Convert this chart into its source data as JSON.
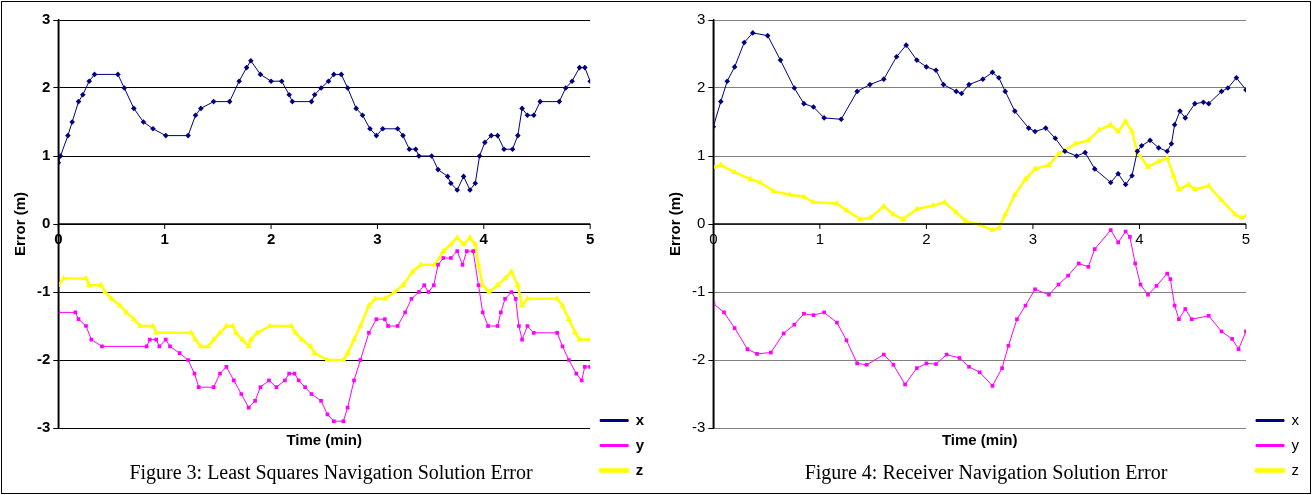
{
  "chart_data": [
    {
      "type": "line",
      "title": "Figure 3: Least Squares Navigation Solution Error",
      "xlabel": "Time (min)",
      "ylabel": "Error (m)",
      "xlim": [
        0,
        5
      ],
      "xticks": [
        0,
        1,
        2,
        3,
        4,
        5
      ],
      "ylim": [
        -3,
        3
      ],
      "yticks": [
        -3,
        -2,
        -1,
        0,
        1,
        2,
        3
      ],
      "grid": "y",
      "legend": "bottom right",
      "series": [
        {
          "name": "x",
          "color": "#000080",
          "marker": "diamond",
          "x": [
            0,
            0.02,
            0.09,
            0.13,
            0.19,
            0.23,
            0.29,
            0.34,
            0.56,
            0.62,
            0.71,
            0.8,
            0.89,
            1.01,
            1.22,
            1.29,
            1.34,
            1.46,
            1.61,
            1.7,
            1.77,
            1.81,
            1.9,
            2.0,
            2.1,
            2.17,
            2.2,
            2.38,
            2.41,
            2.47,
            2.54,
            2.59,
            2.66,
            2.72,
            2.8,
            2.86,
            2.93,
            2.99,
            3.05,
            3.19,
            3.24,
            3.3,
            3.36,
            3.39,
            3.51,
            3.57,
            3.66,
            3.69,
            3.75,
            3.81,
            3.87,
            3.92,
            3.96,
            4.01,
            4.07,
            4.13,
            4.19,
            4.27,
            4.32,
            4.36,
            4.41,
            4.47,
            4.53,
            4.71,
            4.77,
            4.83,
            4.9,
            4.95,
            5.0
          ],
          "values": [
            0.9,
            1.0,
            1.3,
            1.5,
            1.8,
            1.9,
            2.1,
            2.2,
            2.2,
            2.0,
            1.7,
            1.5,
            1.4,
            1.3,
            1.3,
            1.6,
            1.7,
            1.8,
            1.8,
            2.1,
            2.3,
            2.4,
            2.2,
            2.1,
            2.1,
            1.9,
            1.8,
            1.8,
            1.9,
            2.0,
            2.1,
            2.2,
            2.2,
            2.0,
            1.7,
            1.6,
            1.4,
            1.3,
            1.4,
            1.4,
            1.3,
            1.1,
            1.1,
            1.0,
            1.0,
            0.8,
            0.7,
            0.6,
            0.5,
            0.7,
            0.5,
            0.6,
            1.0,
            1.2,
            1.3,
            1.3,
            1.1,
            1.1,
            1.3,
            1.7,
            1.6,
            1.6,
            1.8,
            1.8,
            2.0,
            2.1,
            2.3,
            2.3,
            2.1
          ]
        },
        {
          "name": "y",
          "color": "#ff00ff",
          "marker": "square",
          "x": [
            0,
            0.16,
            0.19,
            0.26,
            0.31,
            0.41,
            0.83,
            0.86,
            0.92,
            0.95,
            1.01,
            1.05,
            1.14,
            1.22,
            1.28,
            1.32,
            1.46,
            1.52,
            1.58,
            1.65,
            1.72,
            1.79,
            1.85,
            1.9,
            1.98,
            2.05,
            2.13,
            2.17,
            2.22,
            2.26,
            2.32,
            2.38,
            2.47,
            2.53,
            2.59,
            2.68,
            2.72,
            2.78,
            2.84,
            2.92,
            2.99,
            3.07,
            3.1,
            3.19,
            3.26,
            3.32,
            3.39,
            3.44,
            3.48,
            3.53,
            3.57,
            3.62,
            3.69,
            3.75,
            3.8,
            3.84,
            3.9,
            3.95,
            3.99,
            4.04,
            4.13,
            4.16,
            4.2,
            4.26,
            4.3,
            4.33,
            4.36,
            4.41,
            4.47,
            4.69,
            4.74,
            4.8,
            4.87,
            4.92,
            4.95,
            5.0
          ],
          "values": [
            -1.3,
            -1.3,
            -1.4,
            -1.5,
            -1.7,
            -1.8,
            -1.8,
            -1.7,
            -1.7,
            -1.8,
            -1.7,
            -1.8,
            -1.9,
            -2.0,
            -2.2,
            -2.4,
            -2.4,
            -2.2,
            -2.1,
            -2.3,
            -2.5,
            -2.7,
            -2.6,
            -2.4,
            -2.3,
            -2.4,
            -2.3,
            -2.2,
            -2.2,
            -2.3,
            -2.4,
            -2.5,
            -2.6,
            -2.8,
            -2.9,
            -2.9,
            -2.7,
            -2.3,
            -2.0,
            -1.6,
            -1.4,
            -1.4,
            -1.5,
            -1.5,
            -1.3,
            -1.1,
            -1.0,
            -0.9,
            -1.0,
            -0.9,
            -0.6,
            -0.5,
            -0.5,
            -0.4,
            -0.6,
            -0.4,
            -0.4,
            -0.9,
            -1.3,
            -1.5,
            -1.5,
            -1.3,
            -1.1,
            -1.0,
            -1.1,
            -1.5,
            -1.7,
            -1.5,
            -1.6,
            -1.6,
            -1.8,
            -2.0,
            -2.2,
            -2.3,
            -2.1,
            -2.1
          ]
        },
        {
          "name": "z",
          "color": "#ffff00",
          "marker": "triangle",
          "x": [
            0,
            0.05,
            0.26,
            0.29,
            0.4,
            0.44,
            0.5,
            0.58,
            0.64,
            0.71,
            0.77,
            0.89,
            0.92,
            1.25,
            1.29,
            1.34,
            1.41,
            1.46,
            1.52,
            1.58,
            1.64,
            1.67,
            1.73,
            1.79,
            1.81,
            1.87,
            1.99,
            2.19,
            2.23,
            2.29,
            2.37,
            2.41,
            2.53,
            2.68,
            2.72,
            2.78,
            2.84,
            2.92,
            2.98,
            3.07,
            3.16,
            3.24,
            3.33,
            3.41,
            3.54,
            3.62,
            3.69,
            3.75,
            3.81,
            3.87,
            3.92,
            3.95,
            3.99,
            4.05,
            4.13,
            4.2,
            4.26,
            4.32,
            4.36,
            4.41,
            4.69,
            4.74,
            4.8,
            4.86,
            4.9,
            5.0
          ],
          "values": [
            -0.9,
            -0.8,
            -0.8,
            -0.9,
            -0.9,
            -1.0,
            -1.1,
            -1.2,
            -1.3,
            -1.4,
            -1.5,
            -1.5,
            -1.6,
            -1.6,
            -1.7,
            -1.8,
            -1.8,
            -1.7,
            -1.6,
            -1.5,
            -1.5,
            -1.6,
            -1.7,
            -1.8,
            -1.7,
            -1.6,
            -1.5,
            -1.5,
            -1.6,
            -1.7,
            -1.8,
            -1.9,
            -2.0,
            -2.0,
            -1.9,
            -1.7,
            -1.5,
            -1.2,
            -1.1,
            -1.1,
            -1.0,
            -0.9,
            -0.7,
            -0.6,
            -0.6,
            -0.4,
            -0.3,
            -0.2,
            -0.3,
            -0.2,
            -0.3,
            -0.6,
            -0.9,
            -1.0,
            -0.9,
            -0.8,
            -0.7,
            -0.9,
            -1.2,
            -1.1,
            -1.1,
            -1.2,
            -1.4,
            -1.6,
            -1.7,
            -1.7
          ]
        }
      ]
    },
    {
      "type": "line",
      "title": "Figure 4: Receiver Navigation Solution Error",
      "xlabel": "Time (min)",
      "ylabel": "Error (m)",
      "xlim": [
        0,
        5
      ],
      "xticks": [
        0,
        1,
        2,
        3,
        4,
        5
      ],
      "ylim": [
        -3,
        3
      ],
      "yticks": [
        -3,
        -2,
        -1,
        0,
        1,
        2,
        3
      ],
      "grid": "y",
      "legend": "bottom right",
      "series": [
        {
          "name": "x",
          "color": "#000080",
          "marker": "diamond",
          "x": [
            0,
            0.07,
            0.13,
            0.2,
            0.29,
            0.37,
            0.51,
            0.63,
            0.76,
            0.85,
            0.94,
            1.04,
            1.2,
            1.35,
            1.47,
            1.6,
            1.72,
            1.81,
            1.91,
            2.0,
            2.09,
            2.16,
            2.28,
            2.33,
            2.4,
            2.53,
            2.62,
            2.68,
            2.74,
            2.83,
            2.96,
            3.02,
            3.12,
            3.21,
            3.3,
            3.41,
            3.49,
            3.58,
            3.73,
            3.8,
            3.87,
            3.93,
            3.98,
            4.02,
            4.1,
            4.18,
            4.26,
            4.3,
            4.33,
            4.38,
            4.43,
            4.52,
            4.6,
            4.65,
            4.77,
            4.83,
            4.91,
            5.0
          ],
          "values": [
            1.43,
            1.8,
            2.1,
            2.31,
            2.67,
            2.81,
            2.77,
            2.41,
            2.0,
            1.77,
            1.72,
            1.56,
            1.54,
            1.95,
            2.05,
            2.13,
            2.46,
            2.63,
            2.41,
            2.31,
            2.26,
            2.05,
            1.95,
            1.92,
            2.05,
            2.13,
            2.23,
            2.15,
            1.95,
            1.66,
            1.41,
            1.36,
            1.41,
            1.26,
            1.07,
            1.0,
            1.05,
            0.81,
            0.61,
            0.74,
            0.58,
            0.71,
            1.07,
            1.15,
            1.23,
            1.12,
            1.07,
            1.18,
            1.46,
            1.66,
            1.56,
            1.77,
            1.79,
            1.77,
            1.95,
            2.0,
            2.15,
            1.97
          ]
        },
        {
          "name": "y",
          "color": "#ff00ff",
          "marker": "square",
          "x": [
            0,
            0.1,
            0.2,
            0.32,
            0.41,
            0.54,
            0.66,
            0.76,
            0.85,
            0.94,
            1.04,
            1.16,
            1.25,
            1.35,
            1.44,
            1.6,
            1.69,
            1.8,
            1.91,
            2.0,
            2.09,
            2.19,
            2.31,
            2.4,
            2.5,
            2.62,
            2.71,
            2.77,
            2.85,
            2.93,
            3.02,
            3.15,
            3.24,
            3.33,
            3.43,
            3.52,
            3.58,
            3.73,
            3.8,
            3.87,
            3.91,
            3.96,
            4.01,
            4.08,
            4.16,
            4.26,
            4.29,
            4.33,
            4.37,
            4.43,
            4.49,
            4.65,
            4.77,
            4.87,
            4.93,
            5.0
          ],
          "values": [
            -1.17,
            -1.3,
            -1.53,
            -1.84,
            -1.91,
            -1.89,
            -1.61,
            -1.48,
            -1.32,
            -1.34,
            -1.3,
            -1.45,
            -1.71,
            -2.05,
            -2.07,
            -1.92,
            -2.07,
            -2.36,
            -2.12,
            -2.05,
            -2.06,
            -1.92,
            -1.97,
            -2.1,
            -2.18,
            -2.38,
            -2.12,
            -1.79,
            -1.4,
            -1.2,
            -0.96,
            -1.04,
            -0.89,
            -0.76,
            -0.58,
            -0.63,
            -0.37,
            -0.09,
            -0.27,
            -0.11,
            -0.19,
            -0.58,
            -0.89,
            -1.04,
            -0.91,
            -0.73,
            -0.81,
            -1.2,
            -1.4,
            -1.25,
            -1.4,
            -1.35,
            -1.58,
            -1.69,
            -1.84,
            -1.58
          ]
        },
        {
          "name": "z",
          "color": "#ffff00",
          "marker": "triangle",
          "x": [
            0,
            0.07,
            0.2,
            0.35,
            0.44,
            0.57,
            0.72,
            0.85,
            0.94,
            1.16,
            1.25,
            1.38,
            1.47,
            1.6,
            1.69,
            1.78,
            1.91,
            2.06,
            2.17,
            2.28,
            2.37,
            2.5,
            2.62,
            2.68,
            2.74,
            2.83,
            2.93,
            3.02,
            3.15,
            3.24,
            3.4,
            3.52,
            3.62,
            3.73,
            3.8,
            3.87,
            3.93,
            3.98,
            4.08,
            4.18,
            4.26,
            4.32,
            4.37,
            4.46,
            4.52,
            4.65,
            4.77,
            4.9,
            4.96,
            5.0
          ],
          "values": [
            0.84,
            0.87,
            0.76,
            0.66,
            0.61,
            0.48,
            0.43,
            0.4,
            0.32,
            0.3,
            0.2,
            0.07,
            0.09,
            0.26,
            0.14,
            0.07,
            0.22,
            0.27,
            0.32,
            0.17,
            0.04,
            -0.01,
            -0.09,
            -0.06,
            0.14,
            0.43,
            0.66,
            0.81,
            0.87,
            1.03,
            1.18,
            1.23,
            1.38,
            1.46,
            1.36,
            1.51,
            1.36,
            1.05,
            0.84,
            0.92,
            0.97,
            0.71,
            0.51,
            0.58,
            0.51,
            0.56,
            0.35,
            0.14,
            0.09,
            0.12
          ]
        }
      ]
    }
  ]
}
